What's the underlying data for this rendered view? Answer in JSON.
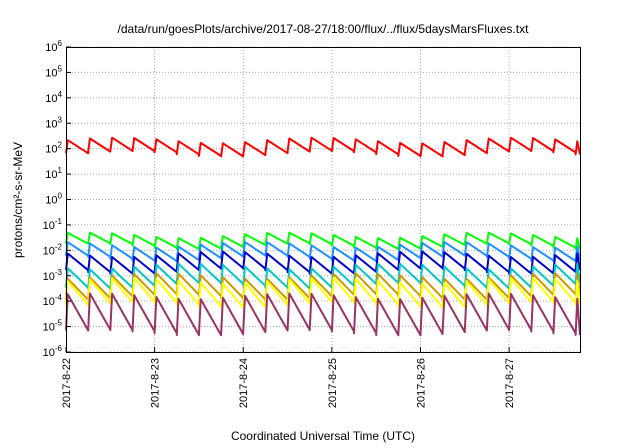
{
  "chart_data": {
    "type": "line",
    "title": "/data/run/goesPlots/archive/2017-08-27/18:00/flux/../flux/5daysMarsFluxes.txt",
    "xlabel": "Coordinated Universal Time (UTC)",
    "ylabel": "protons/cm²-s-sr-MeV",
    "y_scale": "log",
    "ylim_exponent": [
      -6,
      6
    ],
    "y_tick_labels": [
      "10-6",
      "10-5",
      "10-4",
      "10-3",
      "10-2",
      "10-1",
      "100",
      "101",
      "102",
      "103",
      "104",
      "105",
      "106"
    ],
    "x_range_days": [
      "2017-08-22",
      "2017-08-27 ~19:00"
    ],
    "x_tick_labels": [
      "2017-8-22",
      "2017-8-23",
      "2017-8-24",
      "2017-8-25",
      "2017-8-26",
      "2017-8-27"
    ],
    "grid": true,
    "legend": "none",
    "series_styles": [
      {
        "color": "#ff0000",
        "base": 120,
        "amp_up": 1.8,
        "amp_down": 0.55
      },
      {
        "color": "#00ff00",
        "base": 0.025,
        "amp_up": 1.6,
        "amp_down": 0.6
      },
      {
        "color": "#1e90ff",
        "base": 0.01,
        "amp_up": 1.7,
        "amp_down": 0.5
      },
      {
        "color": "#0000cd",
        "base": 0.004,
        "amp_up": 1.8,
        "amp_down": 0.4
      },
      {
        "color": "#00c8c8",
        "base": 0.0012,
        "amp_up": 2.0,
        "amp_down": 0.35
      },
      {
        "color": "#cc9900",
        "base": 0.0005,
        "amp_up": 2.0,
        "amp_down": 0.3
      },
      {
        "color": "#ffff00",
        "base": 0.0003,
        "amp_up": 2.2,
        "amp_down": 0.25
      },
      {
        "color": "#993366",
        "base": 4e-05,
        "amp_up": 4.0,
        "amp_down": 0.15
      }
    ]
  }
}
